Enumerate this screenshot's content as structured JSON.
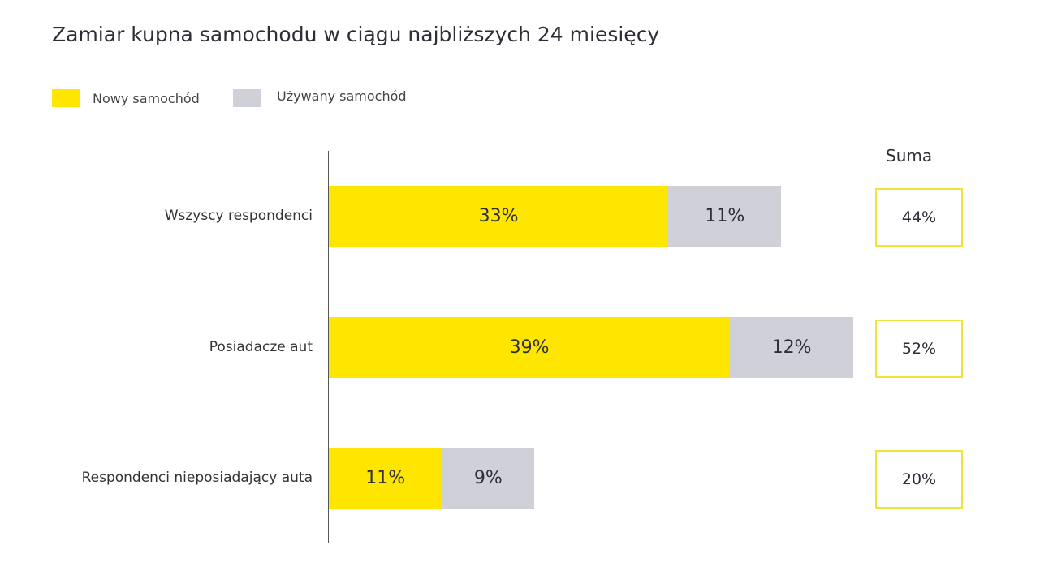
{
  "chart_data": {
    "type": "bar",
    "orientation": "horizontal-stacked",
    "title": "Zamiar kupna samochodu w ciągu najbliższych 24 miesięcy",
    "categories": [
      "Wszyscy respondenci",
      "Posiadacze aut",
      "Respondenci nieposiadający auta"
    ],
    "series": [
      {
        "name": "Nowy samochód",
        "color": "#FFE600",
        "values": [
          33,
          39,
          11
        ],
        "labels": [
          "33%",
          "39%",
          "11%"
        ]
      },
      {
        "name": "Używany samochód",
        "color": "#D0D0D8",
        "values": [
          11,
          12,
          9
        ],
        "labels": [
          "11%",
          "12%",
          "9%"
        ]
      }
    ],
    "totals_header": "Suma",
    "totals": [
      "44%",
      "52%",
      "20%"
    ],
    "xlim": [
      0,
      50
    ],
    "legend": "top-left",
    "grid": false
  }
}
